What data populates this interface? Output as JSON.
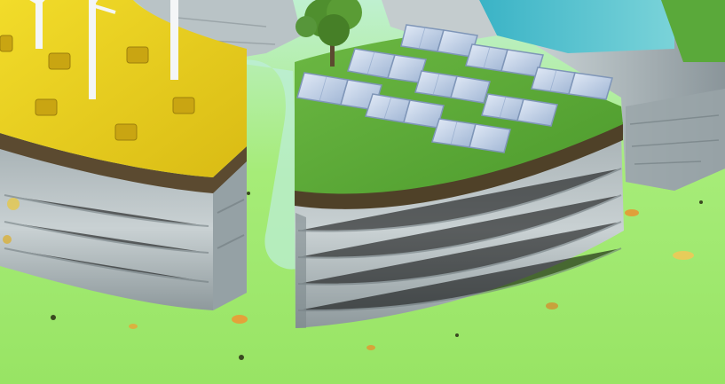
{
  "scene": {
    "description_visible_text": "",
    "colors": {
      "ground_light": "#a8ee72",
      "ground_mid": "#8fdc5c",
      "sky_mint": "#c8f0e0",
      "rock_light": "#c9d3d6",
      "rock_dark": "#7f8b8f",
      "rock_shadow": "#5d676b",
      "soil": "#5a4a32",
      "grass": "#5fa83a",
      "grass_dark": "#3e7f24",
      "rapeseed": "#e8cf1c",
      "rapeseed_dark": "#c9a912",
      "hay": "#d9b21a",
      "panel": "#c4d4ec",
      "panel_dark": "#8ea6c9",
      "water": "#3fb9c9",
      "tree": "#4f8f2e"
    },
    "icons": [
      "wind-turbine-icon",
      "solar-panel-icon",
      "tree-icon",
      "hay-bale-icon"
    ]
  }
}
